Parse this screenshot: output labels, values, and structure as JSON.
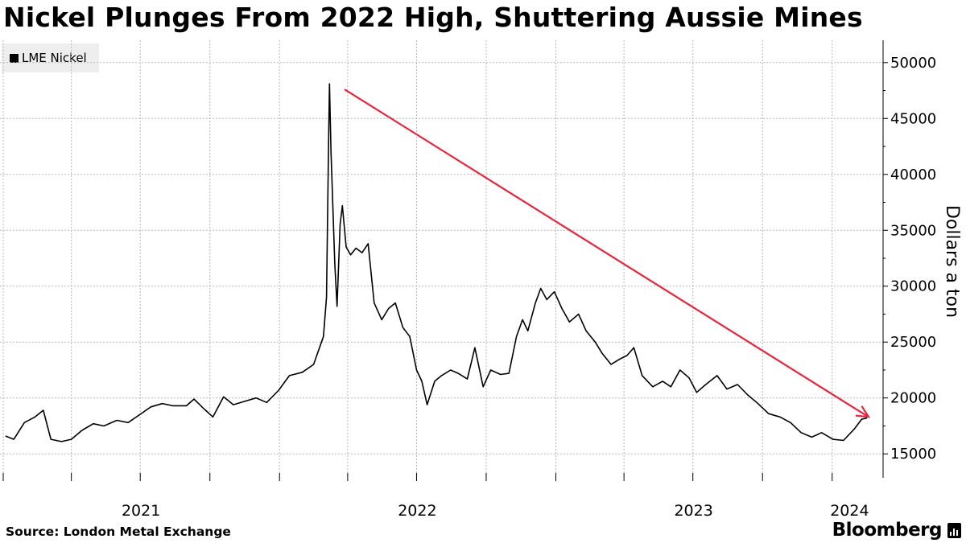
{
  "chart_data": {
    "type": "line",
    "title": "Nickel Plunges From 2022 High, Shuttering Aussie Mines",
    "source": "Source: London Metal Exchange",
    "brand": "Bloomberg",
    "ylabel": "Dollars a ton",
    "ylim": [
      13000,
      52000
    ],
    "yticks": [
      15000,
      20000,
      25000,
      30000,
      35000,
      40000,
      45000,
      50000
    ],
    "xlim": [
      "2021-01-01",
      "2024-02-16"
    ],
    "xtick_labels": [
      {
        "label": "2021",
        "date": "2021-01-01"
      },
      {
        "label": "2022",
        "date": "2022-01-01"
      },
      {
        "label": "2023",
        "date": "2023-01-01"
      },
      {
        "label": "2024",
        "date": "2024-01-01"
      }
    ],
    "grid": true,
    "legend_position": "top-left",
    "series": [
      {
        "name": "LME Nickel",
        "color": "#000000",
        "points": [
          [
            "2021-01-04",
            16600
          ],
          [
            "2021-01-15",
            16300
          ],
          [
            "2021-01-29",
            17800
          ],
          [
            "2021-02-12",
            18300
          ],
          [
            "2021-02-23",
            18900
          ],
          [
            "2021-03-05",
            16300
          ],
          [
            "2021-03-19",
            16100
          ],
          [
            "2021-04-01",
            16300
          ],
          [
            "2021-04-15",
            17100
          ],
          [
            "2021-04-30",
            17700
          ],
          [
            "2021-05-14",
            17500
          ],
          [
            "2021-05-31",
            18000
          ],
          [
            "2021-06-15",
            17800
          ],
          [
            "2021-06-30",
            18500
          ],
          [
            "2021-07-15",
            19200
          ],
          [
            "2021-07-30",
            19500
          ],
          [
            "2021-08-13",
            19300
          ],
          [
            "2021-08-31",
            19300
          ],
          [
            "2021-09-10",
            19900
          ],
          [
            "2021-09-22",
            19100
          ],
          [
            "2021-10-05",
            18300
          ],
          [
            "2021-10-19",
            20100
          ],
          [
            "2021-11-01",
            19400
          ],
          [
            "2021-11-16",
            19700
          ],
          [
            "2021-12-01",
            20000
          ],
          [
            "2021-12-15",
            19600
          ],
          [
            "2021-12-31",
            20700
          ],
          [
            "2022-01-14",
            22000
          ],
          [
            "2022-01-31",
            22300
          ],
          [
            "2022-02-15",
            23000
          ],
          [
            "2022-02-28",
            25500
          ],
          [
            "2022-03-04",
            29000
          ],
          [
            "2022-03-07",
            44000
          ],
          [
            "2022-03-08",
            48100
          ],
          [
            "2022-03-10",
            42000
          ],
          [
            "2022-03-15",
            32000
          ],
          [
            "2022-03-18",
            28200
          ],
          [
            "2022-03-22",
            35500
          ],
          [
            "2022-03-25",
            37200
          ],
          [
            "2022-03-30",
            33500
          ],
          [
            "2022-04-05",
            32800
          ],
          [
            "2022-04-12",
            33400
          ],
          [
            "2022-04-20",
            33000
          ],
          [
            "2022-04-28",
            33800
          ],
          [
            "2022-05-06",
            28500
          ],
          [
            "2022-05-16",
            27000
          ],
          [
            "2022-05-25",
            28000
          ],
          [
            "2022-06-03",
            28500
          ],
          [
            "2022-06-13",
            26300
          ],
          [
            "2022-06-22",
            25500
          ],
          [
            "2022-07-01",
            22500
          ],
          [
            "2022-07-08",
            21500
          ],
          [
            "2022-07-15",
            19400
          ],
          [
            "2022-07-25",
            21500
          ],
          [
            "2022-08-03",
            22000
          ],
          [
            "2022-08-15",
            22500
          ],
          [
            "2022-08-25",
            22200
          ],
          [
            "2022-09-06",
            21700
          ],
          [
            "2022-09-16",
            24500
          ],
          [
            "2022-09-27",
            21000
          ],
          [
            "2022-10-07",
            22500
          ],
          [
            "2022-10-20",
            22100
          ],
          [
            "2022-10-31",
            22200
          ],
          [
            "2022-11-10",
            25500
          ],
          [
            "2022-11-18",
            27000
          ],
          [
            "2022-11-25",
            26000
          ],
          [
            "2022-12-05",
            28500
          ],
          [
            "2022-12-12",
            29800
          ],
          [
            "2022-12-20",
            28800
          ],
          [
            "2022-12-30",
            29500
          ],
          [
            "2023-01-09",
            28000
          ],
          [
            "2023-01-19",
            26800
          ],
          [
            "2023-01-31",
            27500
          ],
          [
            "2023-02-10",
            26000
          ],
          [
            "2023-02-22",
            25000
          ],
          [
            "2023-03-03",
            24000
          ],
          [
            "2023-03-15",
            23000
          ],
          [
            "2023-03-27",
            23500
          ],
          [
            "2023-04-05",
            23800
          ],
          [
            "2023-04-14",
            24500
          ],
          [
            "2023-04-25",
            22000
          ],
          [
            "2023-05-09",
            21000
          ],
          [
            "2023-05-22",
            21500
          ],
          [
            "2023-06-02",
            21000
          ],
          [
            "2023-06-14",
            22500
          ],
          [
            "2023-06-26",
            21800
          ],
          [
            "2023-07-06",
            20500
          ],
          [
            "2023-07-18",
            21200
          ],
          [
            "2023-08-02",
            22000
          ],
          [
            "2023-08-15",
            20800
          ],
          [
            "2023-08-29",
            21200
          ],
          [
            "2023-09-11",
            20300
          ],
          [
            "2023-09-25",
            19500
          ],
          [
            "2023-10-09",
            18600
          ],
          [
            "2023-10-24",
            18300
          ],
          [
            "2023-11-07",
            17800
          ],
          [
            "2023-11-21",
            16900
          ],
          [
            "2023-12-05",
            16500
          ],
          [
            "2023-12-18",
            16900
          ],
          [
            "2024-01-02",
            16300
          ],
          [
            "2024-01-16",
            16200
          ],
          [
            "2024-01-30",
            17200
          ],
          [
            "2024-02-09",
            18100
          ],
          [
            "2024-02-16",
            18200
          ]
        ]
      }
    ]
  },
  "header": {
    "title": "Nickel Plunges From 2022 High, Shuttering Aussie Mines"
  },
  "legend": {
    "label": "LME Nickel"
  },
  "footer": {
    "source": "Source: London Metal Exchange",
    "brand": "Bloomberg"
  },
  "colors": {
    "line": "#000000",
    "trend_arrow": "#e8253c",
    "grid": "#b8b8b8",
    "legend_bg": "#eeeeee"
  }
}
